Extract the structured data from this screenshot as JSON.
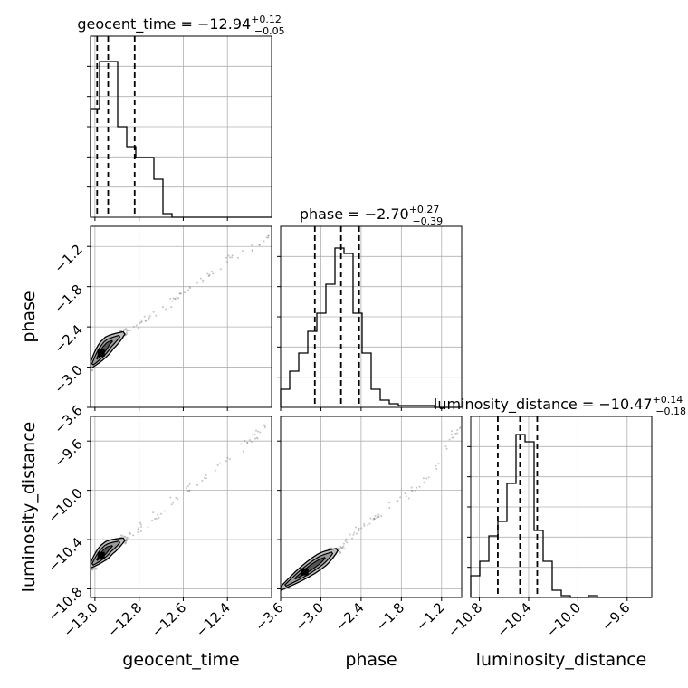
{
  "chart_data": {
    "type": "corner",
    "parameters": [
      {
        "name": "geocent_time",
        "label": "geocent_time",
        "median": "−12.94",
        "plus": "+0.12",
        "minus": "−0.05",
        "title": "geocent_time = −12.94",
        "range": [
          -13.02,
          -12.2
        ],
        "ticks": [
          -13.0,
          -12.8,
          -12.6,
          -12.4
        ],
        "tick_labels": [
          "−13.0",
          "−12.8",
          "−12.6",
          "−12.4"
        ],
        "quantiles": [
          -12.99,
          -12.94,
          -12.82
        ]
      },
      {
        "name": "phase",
        "label": "phase",
        "median": "−2.70",
        "plus": "+0.27",
        "minus": "−0.39",
        "title": "phase = −2.70",
        "range": [
          -3.6,
          -0.9
        ],
        "ticks": [
          -3.6,
          -3.0,
          -2.4,
          -1.8,
          -1.2
        ],
        "tick_labels": [
          "−3.6",
          "−3.0",
          "−2.4",
          "−1.8",
          "−1.2"
        ],
        "quantiles": [
          -3.09,
          -2.7,
          -2.43
        ]
      },
      {
        "name": "luminosity_distance",
        "label": "luminosity_distance",
        "median": "−10.47",
        "plus": "+0.14",
        "minus": "−0.18",
        "title": "luminosity_distance = −10.47",
        "range": [
          -10.87,
          -9.4
        ],
        "ticks": [
          -10.8,
          -10.4,
          -10.0,
          -9.6
        ],
        "tick_labels": [
          "−10.8",
          "−10.4",
          "−10.0",
          "−9.6"
        ],
        "quantiles": [
          -10.65,
          -10.47,
          -10.33
        ]
      }
    ],
    "histograms": [
      {
        "param": "geocent_time",
        "bins": 20,
        "counts": [
          0.6,
          0.86,
          0.86,
          0.5,
          0.39,
          0.33,
          0.33,
          0.21,
          0.02,
          0.0,
          0.0,
          0.0,
          0.0,
          0.0,
          0.0,
          0.0,
          0.0,
          0.0,
          0.0,
          0.0
        ]
      },
      {
        "param": "phase",
        "bins": 20,
        "counts": [
          0.1,
          0.2,
          0.3,
          0.42,
          0.52,
          0.68,
          0.88,
          0.85,
          0.52,
          0.3,
          0.1,
          0.04,
          0.02,
          0.01,
          0.01,
          0.01,
          0.01,
          0.0,
          0.0,
          0.0
        ]
      },
      {
        "param": "luminosity_distance",
        "bins": 20,
        "counts": [
          0.12,
          0.2,
          0.34,
          0.42,
          0.63,
          0.9,
          0.86,
          0.37,
          0.2,
          0.04,
          0.01,
          0.0,
          0.0,
          0.01,
          0.0,
          0.0,
          0.0,
          0.0,
          0.0,
          0.0
        ]
      }
    ],
    "joint_panels": [
      {
        "x": "geocent_time",
        "y": "phase",
        "trend": [
          [
            -13.02,
            -3.0
          ],
          [
            -12.94,
            -2.65
          ],
          [
            -12.85,
            -2.45
          ],
          [
            -12.75,
            -2.25
          ],
          [
            -12.6,
            -1.9
          ],
          [
            -12.4,
            -1.4
          ],
          [
            -12.2,
            -1.05
          ]
        ]
      },
      {
        "x": "geocent_time",
        "y": "luminosity_distance",
        "trend": [
          [
            -13.02,
            -10.62
          ],
          [
            -12.94,
            -10.47
          ],
          [
            -12.85,
            -10.38
          ],
          [
            -12.75,
            -10.25
          ],
          [
            -12.6,
            -10.05
          ],
          [
            -12.4,
            -9.75
          ],
          [
            -12.2,
            -9.45
          ]
        ]
      },
      {
        "x": "phase",
        "y": "luminosity_distance",
        "trend": [
          [
            -3.6,
            -10.8
          ],
          [
            -3.0,
            -10.57
          ],
          [
            -2.7,
            -10.46
          ],
          [
            -2.4,
            -10.3
          ],
          [
            -2.0,
            -10.15
          ],
          [
            -1.4,
            -9.9
          ],
          [
            -0.9,
            -9.45
          ]
        ]
      }
    ],
    "grid": true,
    "colors": {
      "line": "#000000",
      "grid": "#b0b0b0",
      "contour_fill": "#bdbdbd",
      "scatter": "#7f7f7f"
    }
  }
}
